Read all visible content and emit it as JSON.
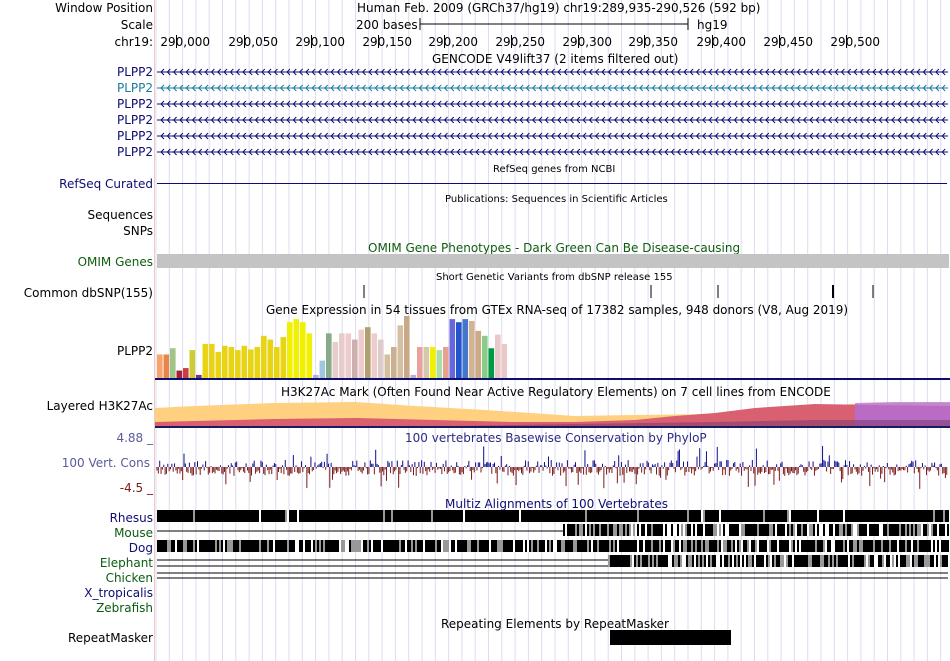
{
  "header": {
    "window_position_label": "Window Position",
    "scale_label": "Scale",
    "chrom_label": "chr19:",
    "assembly_text": "Human Feb. 2009 (GRCh37/hg19)   chr19:289,935-290,526 (592 bp)",
    "scale_text": "200 bases",
    "scale_db": "hg19",
    "ruler_ticks": [
      "290,000",
      "290,050",
      "290,100",
      "290,150",
      "290,200",
      "290,250",
      "290,300",
      "290,350",
      "290,400",
      "290,450",
      "290,500"
    ]
  },
  "tracks": {
    "gencode": {
      "title": "GENCODE V49lift37 (2 items filtered out)",
      "items": [
        "PLPP2",
        "PLPP2",
        "PLPP2",
        "PLPP2",
        "PLPP2",
        "PLPP2"
      ]
    },
    "refseq": {
      "title": "RefSeq genes from NCBI",
      "label": "RefSeq Curated"
    },
    "publications": {
      "title": "Publications: Sequences in Scientific Articles",
      "labels": [
        "Sequences",
        "SNPs"
      ]
    },
    "omim": {
      "title": "OMIM Gene Phenotypes - Dark Green Can Be Disease-causing",
      "label": "OMIM Genes"
    },
    "dbsnp": {
      "title": "Short Genetic Variants from dbSNP release 155",
      "label": "Common dbSNP(155)"
    },
    "gtex": {
      "title": "Gene Expression in 54 tissues from GTEx RNA-seq of 17382 samples, 948 donors (V8, Aug 2019)",
      "label": "PLPP2",
      "values": [
        0.38,
        0.38,
        0.48,
        0.12,
        0.16,
        0.45,
        0.05,
        0.55,
        0.55,
        0.42,
        0.52,
        0.5,
        0.45,
        0.52,
        0.46,
        0.5,
        0.68,
        0.62,
        0.5,
        0.66,
        0.9,
        0.95,
        0.9,
        0.72,
        0.05,
        0.28,
        0.72,
        0.58,
        0.72,
        0.72,
        0.62,
        0.78,
        0.82,
        0.72,
        0.62,
        0.38,
        0.5,
        0.85,
        1.0,
        0.05,
        0.5,
        0.5,
        0.5,
        0.45,
        0.5,
        0.95,
        0.9,
        0.95,
        0.92,
        0.76,
        0.68,
        0.48,
        0.7,
        0.55
      ],
      "colors": [
        "#f6a36c",
        "#e8864a",
        "#a3c488",
        "#a3223a",
        "#cc3b48",
        "#cccc33",
        "#6e3688",
        "#e8d414",
        "#e8d414",
        "#e8d414",
        "#e8d414",
        "#e8d414",
        "#e8d414",
        "#e8d414",
        "#e8d414",
        "#e8d414",
        "#e8d414",
        "#e8d414",
        "#e8d414",
        "#e8d414",
        "#f0f000",
        "#f0f000",
        "#f0f000",
        "#f0f000",
        "#bbaadd",
        "#a0c8dd",
        "#88aa88",
        "#e8cccc",
        "#e8cccc",
        "#eecccc",
        "#ccb0b0",
        "#eecccc",
        "#b0a070",
        "#eecccc",
        "#ddcccc",
        "#d4c0a0",
        "#c8b090",
        "#d4c0a0",
        "#c8a888",
        "#bbaadd",
        "#eaa0a0",
        "#d4c8a8",
        "#f0f000",
        "#aaddaa",
        "#e8a090",
        "#6666dd",
        "#2255cc",
        "#4477cc",
        "#d4b490",
        "#ccaa88",
        "#88cc88",
        "#009944",
        "#e8c8c8",
        "#e8c8c8"
      ]
    },
    "h3k27ac": {
      "title": "H3K27Ac Mark (Often Found Near Active Regulatory Elements) on 7 cell lines from ENCODE",
      "label": "Layered H3K27Ac"
    },
    "phylop": {
      "title": "100 vertebrates Basewise Conservation by PhyloP",
      "label": "100 Vert. Cons",
      "max_label": "4.88 _",
      "min_label": "-4.5 _"
    },
    "multiz": {
      "title": "Multiz Alignments of 100 Vertebrates",
      "species": [
        "Rhesus",
        "Mouse",
        "Dog",
        "Elephant",
        "Chicken",
        "X_tropicalis",
        "Zebrafish"
      ]
    },
    "repeatmasker": {
      "title": "Repeating Elements by RepeatMasker",
      "label": "RepeatMasker"
    }
  },
  "colors": {
    "navy": "#0d0d72",
    "gencode_selected": "#1a7aa0",
    "omim_bar": "#c4c4c4",
    "phylop_pos": "#0d0d90",
    "phylop_neg": "#7a1a1a",
    "h3k27ac_orange": "#ffd080",
    "h3k27ac_pink": "#d86070",
    "h3k27ac_purple": "#b070e0",
    "grid": "#d8d8f0"
  }
}
